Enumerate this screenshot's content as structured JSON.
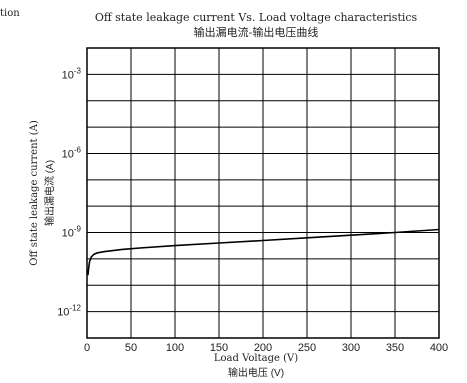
{
  "corner_text": "tion",
  "chart_data": {
    "type": "line",
    "title": "Off state leakage current Vs. Load voltage characteristics",
    "subtitle": "输出漏电流-输出电压曲线",
    "xlabel": "Load Voltage (V)",
    "xlabel_cn": "输出电压 (V)",
    "ylabel": "Off state leakage current (A)",
    "ylabel_cn": "输出漏电流 (A)",
    "xlim": [
      0,
      400
    ],
    "ylim": [
      1e-13,
      0.01
    ],
    "y_scale": "log",
    "x_ticks": [
      "0",
      "50",
      "100",
      "150",
      "200",
      "250",
      "300",
      "350",
      "400"
    ],
    "y_ticks": [
      {
        "base": "10",
        "exp": "-3",
        "value": 0.001
      },
      {
        "base": "10",
        "exp": "-6",
        "value": 1e-06
      },
      {
        "base": "10",
        "exp": "-9",
        "value": 1e-09
      },
      {
        "base": "10",
        "exp": "-12",
        "value": 1e-12
      }
    ],
    "grid": true,
    "series": [
      {
        "x": [
          1,
          2,
          3,
          5,
          8,
          12,
          20,
          40,
          60,
          100,
          150,
          200,
          250,
          300,
          350,
          400
        ],
        "y": [
          2.4e-11,
          5e-11,
          8e-11,
          1.2e-10,
          1.5e-10,
          1.7e-10,
          1.9e-10,
          2.3e-10,
          2.6e-10,
          3.2e-10,
          4e-10,
          5e-10,
          6.3e-10,
          7.9e-10,
          1e-09,
          1.3e-09
        ]
      }
    ]
  }
}
